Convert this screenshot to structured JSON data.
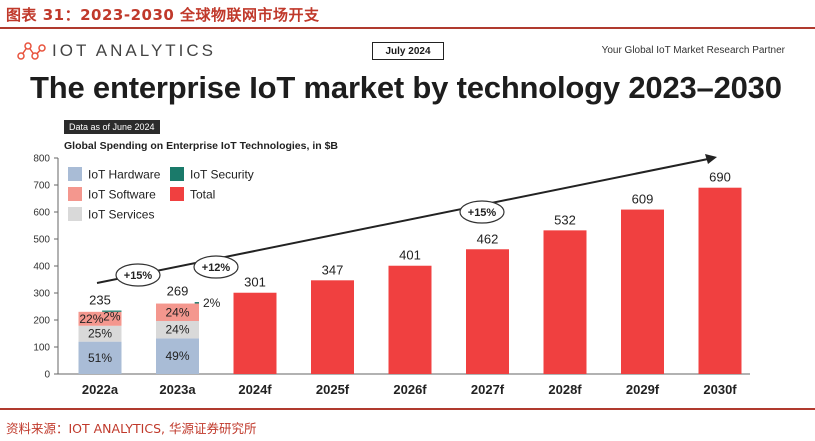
{
  "figure_title": "图表 31：2023-2030 全球物联网市场开支",
  "header": {
    "brand": "IOT ANALYTICS",
    "date_badge": "July 2024",
    "tagline": "Your Global IoT Market Research Partner"
  },
  "headline": "The enterprise IoT market by technology 2023–2030",
  "data_note": "Data as of June 2024",
  "source": "资料来源：IOT ANALYTICS, 华源证券研究所",
  "colors": {
    "hardware": "#a9bcd6",
    "software": "#f4978e",
    "services": "#d9d9d9",
    "security": "#1a7a6a",
    "total": "#f04040",
    "trend": "#222222"
  },
  "chart_data": {
    "type": "bar",
    "title": "Global Spending on Enterprise IoT Technologies, in $B",
    "xlabel": "",
    "ylabel": "",
    "ylim": [
      0,
      800
    ],
    "yticks": [
      0,
      100,
      200,
      300,
      400,
      500,
      600,
      700,
      800
    ],
    "categories": [
      "2022a",
      "2023a",
      "2024f",
      "2025f",
      "2026f",
      "2027f",
      "2028f",
      "2029f",
      "2030f"
    ],
    "totals": [
      235,
      269,
      301,
      347,
      401,
      462,
      532,
      609,
      690
    ],
    "stacked": [
      {
        "category": "2022a",
        "segments": [
          {
            "name": "IoT Hardware",
            "pct": 51,
            "label": "51%"
          },
          {
            "name": "IoT Services",
            "pct": 25,
            "label": "25%"
          },
          {
            "name": "IoT Software",
            "pct": 22,
            "label": "22%"
          },
          {
            "name": "IoT Security",
            "pct": 2,
            "label": "2%"
          }
        ]
      },
      {
        "category": "2023a",
        "segments": [
          {
            "name": "IoT Hardware",
            "pct": 49,
            "label": "49%"
          },
          {
            "name": "IoT Services",
            "pct": 24,
            "label": "24%"
          },
          {
            "name": "IoT Software",
            "pct": 24,
            "label": "24%"
          },
          {
            "name": "IoT Security",
            "pct": 2,
            "label": "2%"
          }
        ]
      }
    ],
    "legend": [
      "IoT Hardware",
      "IoT Security",
      "IoT Software",
      "Total",
      "IoT Services"
    ],
    "legend_position": "top-left",
    "growth_annotations": [
      {
        "label": "+15%",
        "between": [
          "2022a",
          "2023a"
        ]
      },
      {
        "label": "+12%",
        "between": [
          "2023a",
          "2024f"
        ]
      },
      {
        "label": "+15%",
        "between": [
          "2026f",
          "2027f"
        ]
      }
    ]
  }
}
